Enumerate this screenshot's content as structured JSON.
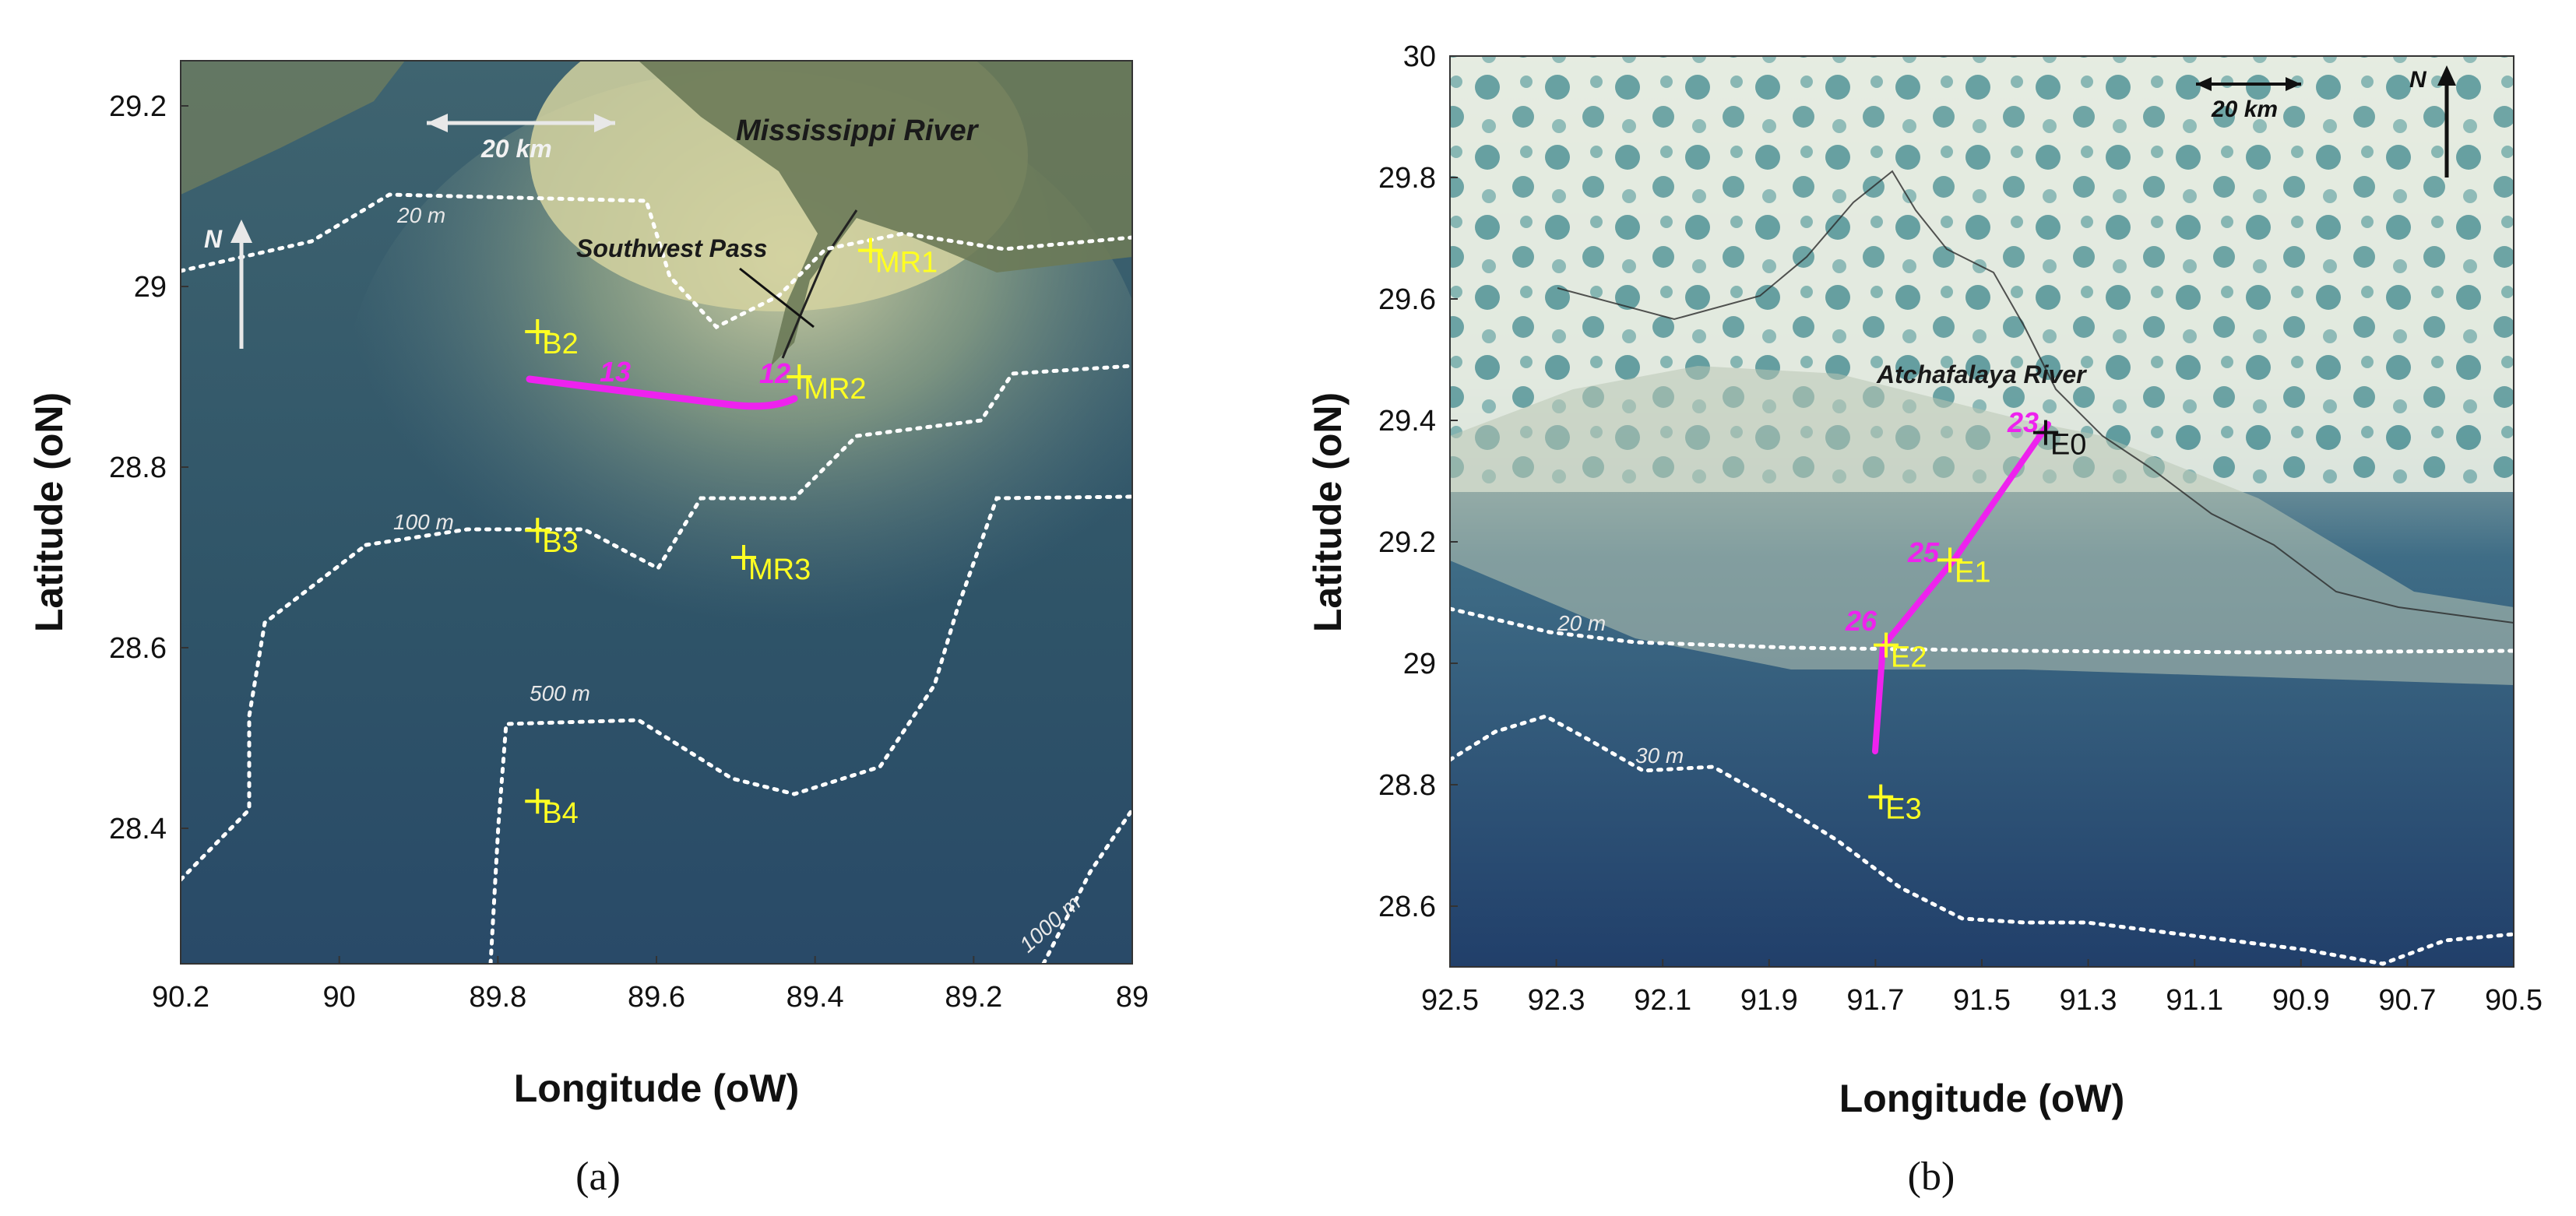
{
  "panels": [
    {
      "id": "a",
      "caption": "(a)",
      "xlabel": "Longitude (oW)",
      "ylabel": "Latitude (oN)",
      "xticks": [
        "90.2",
        "90",
        "89.8",
        "89.6",
        "89.4",
        "89.2",
        "89"
      ],
      "yticks": [
        "29.2",
        "29",
        "28.8",
        "28.6",
        "28.4"
      ],
      "xlim": [
        90.2,
        89.0
      ],
      "ylim": [
        28.25,
        29.25
      ],
      "places": [
        "Mississippi River",
        "Southwest Pass"
      ],
      "scale_bar": "20 km",
      "north_label": "N",
      "contour_labels": [
        "20 m",
        "100 m",
        "500 m",
        "1000 m"
      ],
      "stations": [
        {
          "name": "MR1",
          "lon": 89.33,
          "lat": 29.04
        },
        {
          "name": "B2",
          "lon": 89.75,
          "lat": 28.95
        },
        {
          "name": "MR2",
          "lon": 89.42,
          "lat": 28.9
        },
        {
          "name": "B3",
          "lon": 89.75,
          "lat": 28.73
        },
        {
          "name": "MR3",
          "lon": 89.49,
          "lat": 28.7
        },
        {
          "name": "B4",
          "lon": 89.75,
          "lat": 28.43
        }
      ],
      "transect_labels": [
        "13",
        "12"
      ],
      "colors": {
        "station": "#ffff22",
        "transect": "#ee22ee",
        "contour": "#ffffff"
      }
    },
    {
      "id": "b",
      "caption": "(b)",
      "xlabel": "Longitude (oW)",
      "ylabel": "Latitude (oN)",
      "xticks": [
        "92.5",
        "92.3",
        "92.1",
        "91.9",
        "91.7",
        "91.5",
        "91.3",
        "91.1",
        "90.9",
        "90.7",
        "90.5"
      ],
      "yticks": [
        "30",
        "29.8",
        "29.6",
        "29.4",
        "29.2",
        "29",
        "28.8",
        "28.6"
      ],
      "xlim": [
        92.5,
        90.5
      ],
      "ylim": [
        28.5,
        30.0
      ],
      "places": [
        "Atchafalaya River"
      ],
      "scale_bar": "20 km",
      "north_label": "N",
      "contour_labels": [
        "20 m",
        "30 m"
      ],
      "stations": [
        {
          "name": "E0",
          "lon": 91.38,
          "lat": 29.38
        },
        {
          "name": "E1",
          "lon": 91.56,
          "lat": 29.17
        },
        {
          "name": "E2",
          "lon": 91.68,
          "lat": 29.03
        },
        {
          "name": "E3",
          "lon": 91.69,
          "lat": 28.78
        }
      ],
      "transect_labels": [
        "23",
        "25",
        "26"
      ],
      "colors": {
        "station": "#ffff22",
        "transect": "#ee22ee",
        "contour": "#ffffff"
      }
    }
  ]
}
